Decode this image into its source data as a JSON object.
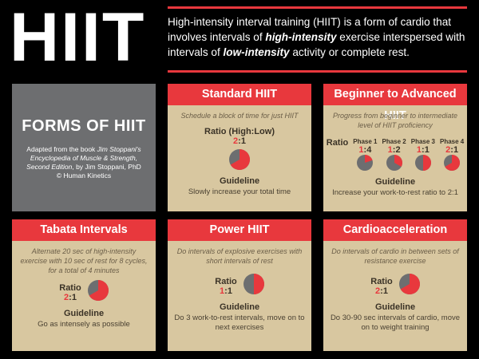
{
  "header": {
    "title": "HIIT",
    "intro": [
      "High-intensity interval training (HIIT) is a form of cardio that involves intervals of ",
      "high-intensity",
      " exercise interspersed with intervals of ",
      "low-intensity",
      " activity or complete rest."
    ]
  },
  "forms": {
    "title": "FORMS OF HIIT",
    "credit": [
      "Adapted from the book ",
      "Jim Stoppani's Encyclopedia of Muscle & Strength, Second Edition",
      ", by Jim Stoppani, PhD",
      "© Human Kinetics"
    ]
  },
  "cards": [
    {
      "title": "Standard HIIT",
      "description": "Schedule a block of time for just HIIT",
      "ratio_label": "Ratio (High:Low)",
      "ratio": {
        "work": 2,
        "separator": ":",
        "rest": 1
      },
      "guideline_label": "Guideline",
      "guideline": "Slowly increase your total time"
    },
    {
      "title": "Beginner to Advanced HIIT",
      "description": "Progress from beginner to intermediate level of HIIT proficiency",
      "ratio_label": "Ratio",
      "phases": [
        {
          "label": "Phase 1",
          "work": 1,
          "separator": ":",
          "rest": 4
        },
        {
          "label": "Phase 2",
          "work": 1,
          "separator": ":",
          "rest": 2
        },
        {
          "label": "Phase 3",
          "work": 1,
          "separator": ":",
          "rest": 1
        },
        {
          "label": "Phase 4",
          "work": 2,
          "separator": ":",
          "rest": 1
        }
      ],
      "guideline_label": "Guideline",
      "guideline": "Increase your work-to-rest ratio to 2:1"
    },
    {
      "title": "Tabata Intervals",
      "description": "Alternate 20 sec of high-intensity exercise with 10 sec of rest for 8 cycles, for a total of 4 minutes",
      "ratio_label": "Ratio",
      "ratio": {
        "work": 2,
        "separator": ":",
        "rest": 1
      },
      "guideline_label": "Guideline",
      "guideline": "Go as intensely as possible"
    },
    {
      "title": "Power HIIT",
      "description": "Do intervals of explosive exercises with short intervals of rest",
      "ratio_label": "Ratio",
      "ratio": {
        "work": 1,
        "separator": ":",
        "rest": 1
      },
      "guideline_label": "Guideline",
      "guideline": "Do 3 work-to-rest intervals, move on to next exercises"
    },
    {
      "title": "Cardioacceleration",
      "description": "Do intervals of cardio in between sets of resistance exercise",
      "ratio_label": "Ratio",
      "ratio": {
        "work": 2,
        "separator": ":",
        "rest": 1
      },
      "guideline_label": "Guideline",
      "guideline": "Do 30-90 sec intervals of cardio, move on to weight training"
    }
  ]
}
